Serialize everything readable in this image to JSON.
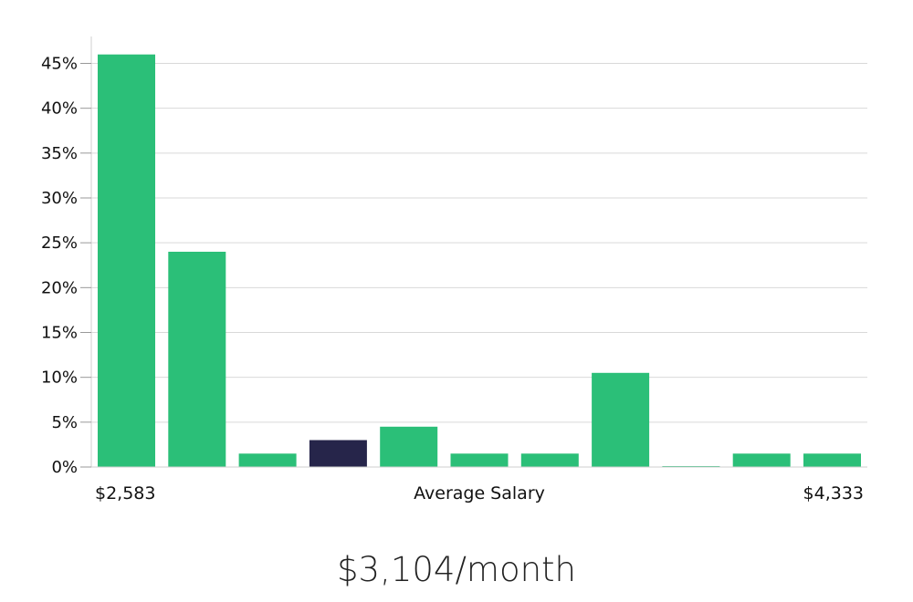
{
  "chart_data": {
    "type": "bar",
    "categories": [
      "$2,583",
      "",
      "",
      "",
      "",
      "",
      "",
      "",
      "",
      "",
      "$4,333"
    ],
    "values": [
      46,
      24,
      1.5,
      3,
      4.5,
      1.5,
      1.5,
      10.5,
      0.1,
      1.5,
      1.5
    ],
    "highlight_index": 3,
    "colors": {
      "bar": "#2bbf78",
      "highlight": "#26254a"
    },
    "ylim": [
      0,
      48
    ],
    "yticks": [
      0,
      5,
      10,
      15,
      20,
      25,
      30,
      35,
      40,
      45
    ],
    "ytick_labels": [
      "0%",
      "5%",
      "10%",
      "15%",
      "20%",
      "25%",
      "30%",
      "35%",
      "40%",
      "45%"
    ],
    "xlabel": "Average Salary",
    "x_start_label": "$2,583",
    "x_end_label": "$4,333",
    "grid": true
  },
  "summary": {
    "average_label": "$3,104/month"
  }
}
